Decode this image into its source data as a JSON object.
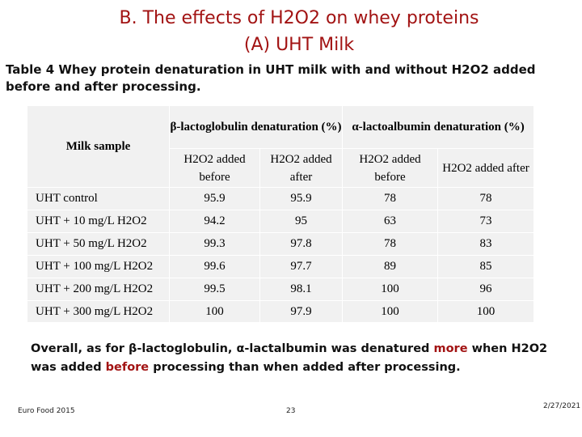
{
  "slide": {
    "title_line1": "B. The effects of H2O2 on whey proteins",
    "title_line2": "(A) UHT Milk",
    "caption": "Table 4 Whey protein denaturation in UHT milk with and without H2O2 added before and after processing."
  },
  "table": {
    "sample_header": "Milk sample",
    "group_headers": [
      "β-lactoglobulin denaturation (%)",
      "α-lactoalbumin denaturation (%)"
    ],
    "sub_headers": [
      "H2O2 added before",
      "H2O2 added after",
      "H2O2 added before",
      "H2O2 added after"
    ],
    "rows": [
      {
        "sample": "UHT control",
        "values": [
          "95.9",
          "95.9",
          "78",
          "78"
        ]
      },
      {
        "sample": "UHT + 10 mg/L H2O2",
        "values": [
          "94.2",
          "95",
          "63",
          "73"
        ]
      },
      {
        "sample": "UHT + 50 mg/L H2O2",
        "values": [
          "99.3",
          "97.8",
          "78",
          "83"
        ]
      },
      {
        "sample": "UHT + 100 mg/L H2O2",
        "values": [
          "99.6",
          "97.7",
          "89",
          "85"
        ]
      },
      {
        "sample": "UHT + 200 mg/L H2O2",
        "values": [
          "99.5",
          "98.1",
          "100",
          "96"
        ]
      },
      {
        "sample": "UHT + 300 mg/L H2O2",
        "values": [
          "100",
          "97.9",
          "100",
          "100"
        ]
      }
    ]
  },
  "conclusion": {
    "part1": "Overall, as for β-lactoglobulin, α-lactalbumin was denatured ",
    "highlight1": "more",
    "part2": " when H2O2 was added ",
    "highlight2": "before",
    "part3": " processing than when added after processing."
  },
  "footer": {
    "left": "Euro Food 2015",
    "page": "23",
    "date": "2/27/2021"
  },
  "colors": {
    "accent": "#a21313",
    "table_bg": "#f1f1f1"
  }
}
